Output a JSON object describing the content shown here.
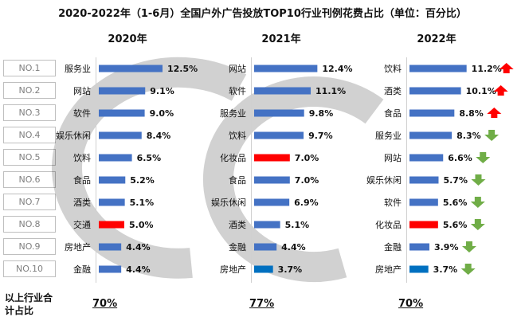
{
  "title": "2020-2022年（1-6月）全国户外广告投放TOP10行业刊例花费占比（单位：百分比）",
  "rank_labels": [
    "NO.1",
    "NO.2",
    "NO.3",
    "NO.4",
    "NO.5",
    "NO.6",
    "NO.7",
    "NO.8",
    "NO.9",
    "NO.10"
  ],
  "footer_label": "以上行业合计占比",
  "colors": {
    "bar": "#4472C4",
    "highlight": "#FF0000",
    "new_entry": "#0070C0",
    "up_arrow": "#FF0000",
    "down_arrow": "#70AD47"
  },
  "chart_data": [
    {
      "type": "bar",
      "year": "2020年",
      "total": "70%",
      "categories": [
        "服务业",
        "网站",
        "软件",
        "娱乐休闲",
        "饮料",
        "食品",
        "酒类",
        "交通",
        "房地产",
        "金融"
      ],
      "values": [
        12.5,
        9.1,
        9.0,
        8.4,
        6.5,
        5.2,
        5.1,
        5.0,
        4.4,
        4.4
      ],
      "value_labels": [
        "12.5%",
        "9.1%",
        "9.0%",
        "8.4%",
        "6.5%",
        "5.2%",
        "5.1%",
        "5.0%",
        "4.4%",
        "4.4%"
      ],
      "highlight": [
        "normal",
        "normal",
        "normal",
        "normal",
        "normal",
        "normal",
        "normal",
        "highlight",
        "normal",
        "normal"
      ],
      "trend": [
        "",
        "",
        "",
        "",
        "",
        "",
        "",
        "",
        "",
        ""
      ]
    },
    {
      "type": "bar",
      "year": "2021年",
      "total": "77%",
      "categories": [
        "网站",
        "软件",
        "服务业",
        "饮料",
        "化妆品",
        "食品",
        "娱乐休闲",
        "酒类",
        "金融",
        "房地产"
      ],
      "values": [
        12.4,
        11.1,
        9.8,
        9.7,
        7.0,
        7.0,
        6.9,
        5.1,
        4.4,
        3.7
      ],
      "value_labels": [
        "12.4%",
        "11.1%",
        "9.8%",
        "9.7%",
        "7.0%",
        "7.0%",
        "6.9%",
        "5.1%",
        "4.4%",
        "3.7%"
      ],
      "highlight": [
        "normal",
        "normal",
        "normal",
        "normal",
        "highlight",
        "normal",
        "normal",
        "normal",
        "normal",
        "new_entry"
      ],
      "trend": [
        "",
        "",
        "",
        "",
        "",
        "",
        "",
        "",
        "",
        ""
      ]
    },
    {
      "type": "bar",
      "year": "2022年",
      "total": "70%",
      "categories": [
        "饮料",
        "酒类",
        "食品",
        "服务业",
        "网站",
        "娱乐休闲",
        "软件",
        "化妆品",
        "金融",
        "房地产"
      ],
      "values": [
        11.2,
        10.1,
        8.8,
        8.3,
        6.6,
        5.7,
        5.6,
        5.6,
        3.9,
        3.7
      ],
      "value_labels": [
        "11.2%",
        "10.1%",
        "8.8%",
        "8.3%",
        "6.6%",
        "5.7%",
        "5.6%",
        "5.6%",
        "3.9%",
        "3.7%"
      ],
      "highlight": [
        "normal",
        "normal",
        "normal",
        "normal",
        "normal",
        "normal",
        "normal",
        "highlight",
        "normal",
        "new_entry"
      ],
      "trend": [
        "up",
        "up",
        "up",
        "down",
        "down",
        "down",
        "down",
        "down",
        "down",
        "down"
      ]
    }
  ]
}
